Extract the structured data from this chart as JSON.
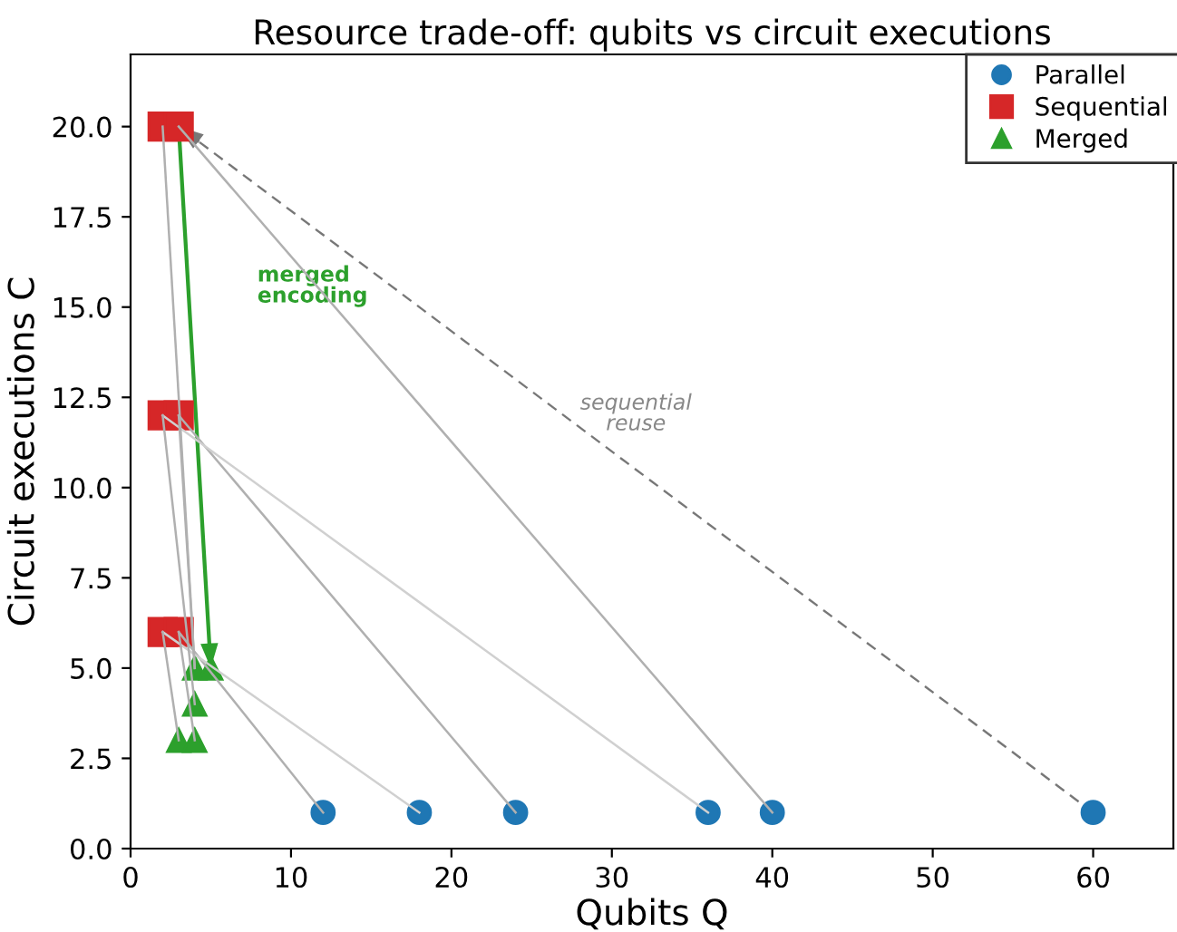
{
  "chart_data": {
    "type": "scatter",
    "title": "Resource trade-off: qubits vs circuit executions",
    "xlabel": "Qubits Q",
    "ylabel": "Circuit executions C",
    "xlim": [
      0,
      65
    ],
    "xticks": [
      0,
      10,
      20,
      30,
      40,
      50,
      60
    ],
    "ylim": [
      0,
      22
    ],
    "yticks": [
      {
        "value": 0,
        "label": "0.0"
      },
      {
        "value": 2.5,
        "label": "2.5"
      },
      {
        "value": 5,
        "label": "5.0"
      },
      {
        "value": 7.5,
        "label": "7.5"
      },
      {
        "value": 10,
        "label": "10.0"
      },
      {
        "value": 12.5,
        "label": "12.5"
      },
      {
        "value": 15,
        "label": "15.0"
      },
      {
        "value": 17.5,
        "label": "17.5"
      },
      {
        "value": 20,
        "label": "20.0"
      }
    ],
    "grid": false,
    "legend": "top right",
    "series": [
      {
        "type": "line",
        "color": "#b0b0b0",
        "marker": "none",
        "x": [
          12,
          3
        ],
        "values": [
          1,
          6
        ]
      },
      {
        "type": "line",
        "color": "#d0d0d0",
        "marker": "none",
        "x": [
          18,
          2
        ],
        "values": [
          1,
          6
        ]
      },
      {
        "type": "line",
        "color": "#b0b0b0",
        "marker": "none",
        "x": [
          24,
          3
        ],
        "values": [
          1,
          12
        ]
      },
      {
        "type": "line",
        "color": "#d0d0d0",
        "marker": "none",
        "x": [
          36,
          2
        ],
        "values": [
          1,
          12
        ]
      },
      {
        "type": "line",
        "color": "#b0b0b0",
        "marker": "none",
        "x": [
          40,
          3
        ],
        "values": [
          1,
          20
        ]
      },
      {
        "type": "line",
        "color": "#b0b0b0",
        "marker": "none",
        "x": [
          2,
          3
        ],
        "values": [
          6,
          3
        ]
      },
      {
        "type": "line",
        "color": "#b0b0b0",
        "marker": "none",
        "x": [
          3,
          4
        ],
        "values": [
          6,
          3
        ]
      },
      {
        "type": "line",
        "color": "#b0b0b0",
        "marker": "none",
        "x": [
          2,
          4
        ],
        "values": [
          12,
          4
        ]
      },
      {
        "type": "line",
        "color": "#b0b0b0",
        "marker": "none",
        "x": [
          3,
          4
        ],
        "values": [
          12,
          5
        ]
      },
      {
        "type": "line",
        "color": "#b0b0b0",
        "marker": "none",
        "x": [
          2,
          4
        ],
        "values": [
          20,
          5
        ]
      },
      {
        "name": "Parallel",
        "color": "#1f77b4",
        "marker": "circle",
        "x": [
          12,
          18,
          24,
          36,
          40,
          60
        ],
        "values": [
          1,
          1,
          1,
          1,
          1,
          1
        ]
      },
      {
        "name": "Sequential",
        "color": "#d62728",
        "marker": "square",
        "x": [
          2,
          3,
          2,
          3,
          2,
          3
        ],
        "values": [
          20,
          20,
          12,
          12,
          6,
          6
        ]
      },
      {
        "name": "Merged",
        "color": "#2ca02c",
        "marker": "triangle",
        "x": [
          4,
          5,
          4,
          3,
          4
        ],
        "values": [
          5,
          5,
          4,
          3,
          3
        ]
      }
    ],
    "annotations": [
      "merged\nencoding",
      "sequential\nreuse"
    ]
  }
}
